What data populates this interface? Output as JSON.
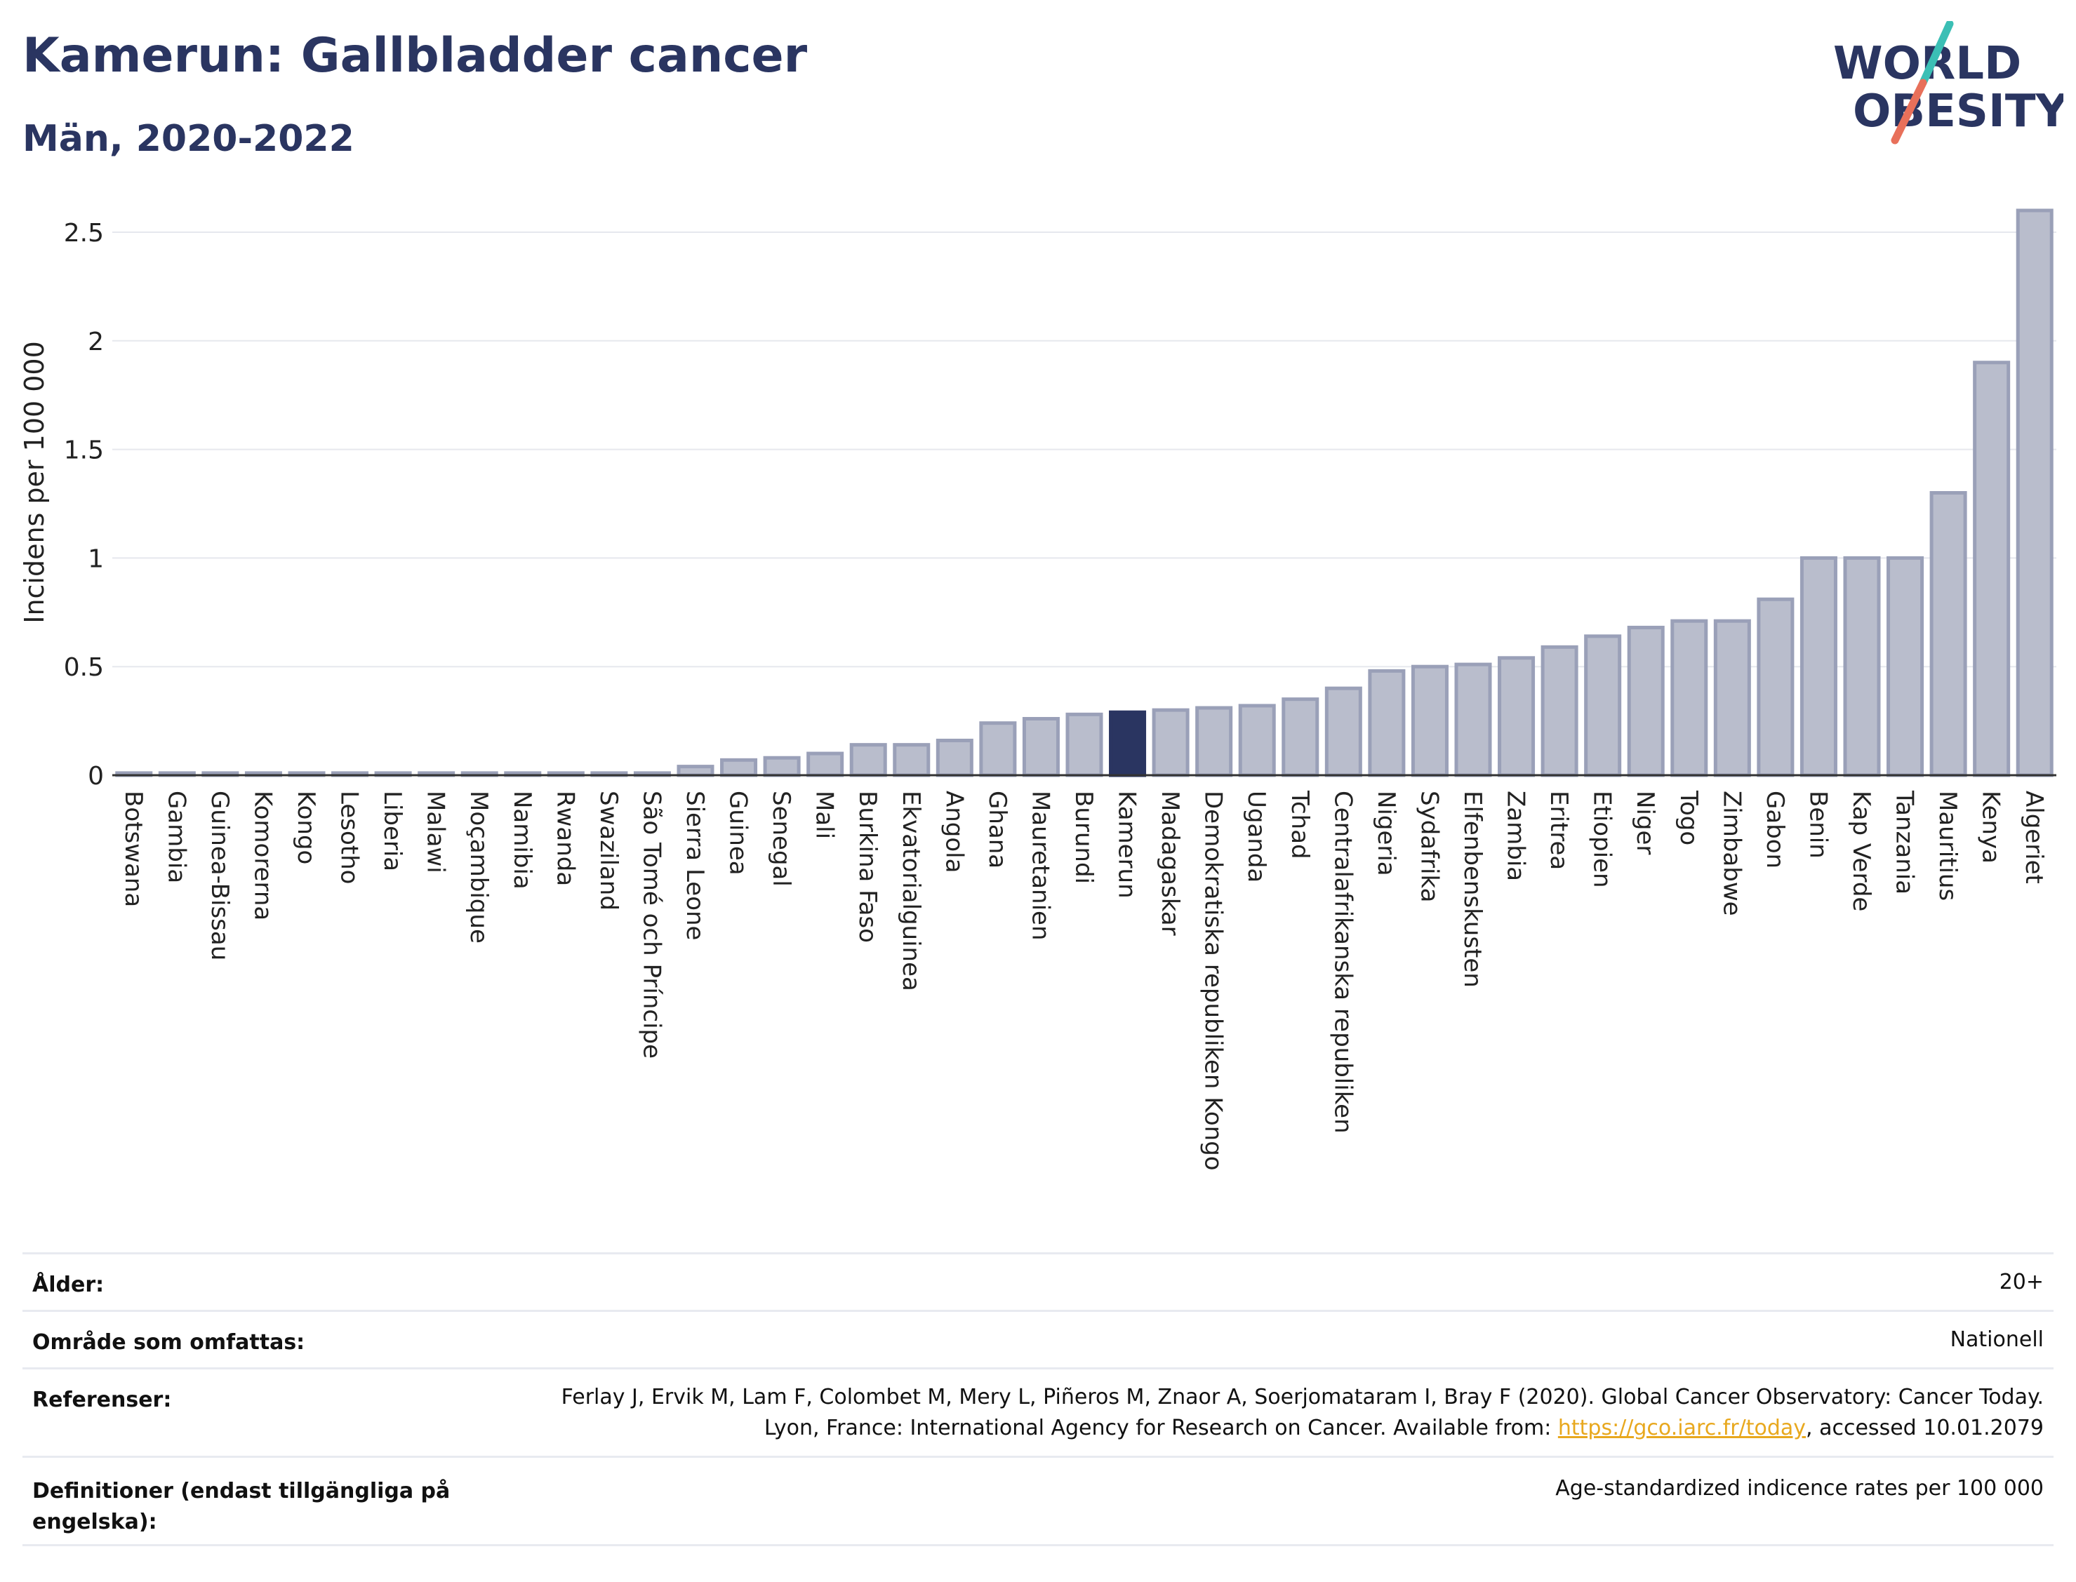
{
  "header": {
    "title": "Kamerun: Gallbladder cancer",
    "subtitle": "Män, 2020-2022"
  },
  "logo": {
    "line1": "WORLD",
    "line2": "OBESITY",
    "colors": {
      "text": "#2a3561",
      "slash_top": "#3bbfb5",
      "slash_bottom": "#e8705a"
    }
  },
  "chart_data": {
    "type": "bar",
    "ylabel": "Incidens per 100 000",
    "ylim": [
      0,
      2.6
    ],
    "yticks": [
      0,
      0.5,
      1,
      1.5,
      2,
      2.5
    ],
    "ytick_labels": [
      "0",
      "0.5",
      "1",
      "1.5",
      "2",
      "2.5"
    ],
    "grid": true,
    "highlight": "Kamerun",
    "colors": {
      "bar": "#b9bdcc",
      "bar_border": "#9aa0b8",
      "highlight": "#2a3561"
    },
    "categories": [
      "Botswana",
      "Gambia",
      "Guinea-Bissau",
      "Komorerna",
      "Kongo",
      "Lesotho",
      "Liberia",
      "Malawi",
      "Moçambique",
      "Namibia",
      "Rwanda",
      "Swaziland",
      "São Tomé och Príncipe",
      "Sierra Leone",
      "Guinea",
      "Senegal",
      "Mali",
      "Burkina Faso",
      "Ekvatorialguinea",
      "Angola",
      "Ghana",
      "Mauretanien",
      "Burundi",
      "Kamerun",
      "Madagaskar",
      "Demokratiska republiken Kongo",
      "Uganda",
      "Tchad",
      "Centralafrikanska republiken",
      "Nigeria",
      "Sydafrika",
      "Elfenbenskusten",
      "Zambia",
      "Eritrea",
      "Etiopien",
      "Niger",
      "Togo",
      "Zimbabwe",
      "Gabon",
      "Benin",
      "Kap Verde",
      "Tanzania",
      "Mauritius",
      "Kenya",
      "Algeriet"
    ],
    "values": [
      0.01,
      0.01,
      0.01,
      0.01,
      0.01,
      0.01,
      0.01,
      0.01,
      0.01,
      0.01,
      0.01,
      0.01,
      0.01,
      0.04,
      0.07,
      0.08,
      0.1,
      0.14,
      0.14,
      0.16,
      0.24,
      0.26,
      0.28,
      0.29,
      0.3,
      0.31,
      0.32,
      0.35,
      0.4,
      0.48,
      0.5,
      0.51,
      0.54,
      0.59,
      0.64,
      0.68,
      0.71,
      0.71,
      0.81,
      1.0,
      1.0,
      1.0,
      1.3,
      1.9,
      2.6
    ]
  },
  "meta": {
    "rows": [
      {
        "label": "Ålder:",
        "value": "20+"
      },
      {
        "label": "Område som omfattas:",
        "value": "Nationell"
      },
      {
        "label": "Referenser:",
        "value_pre": "Ferlay J, Ervik M, Lam F, Colombet M, Mery L, Piñeros M, Znaor A, Soerjomataram I, Bray F (2020). Global Cancer Observatory: Cancer Today. Lyon, France: International Agency for Research on Cancer. Available from: ",
        "link": "https://gco.iarc.fr/today",
        "value_post": ", accessed 10.01.2079"
      },
      {
        "label": "Definitioner (endast tillgängliga på engelska):",
        "value": "Age-standardized indicence rates per 100 000"
      }
    ]
  }
}
